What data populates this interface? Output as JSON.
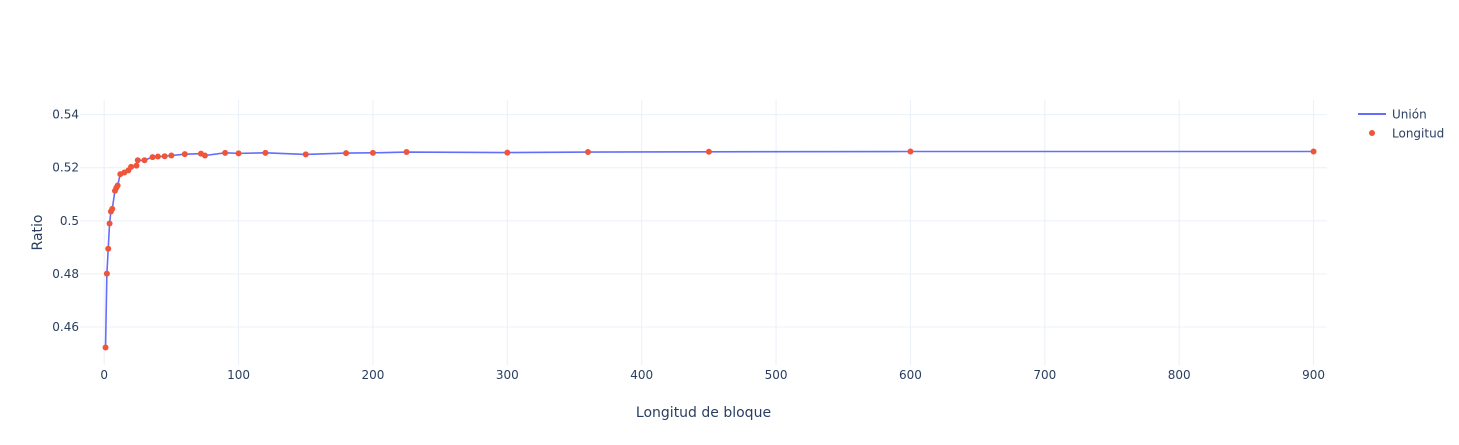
{
  "chart_data": {
    "type": "line",
    "title": "",
    "xlabel": "Longitud de bloque",
    "ylabel": "Ratio",
    "xlim": [
      -18,
      910
    ],
    "ylim": [
      0.4457,
      0.5455
    ],
    "xticks": [
      0,
      100,
      200,
      300,
      400,
      500,
      600,
      700,
      800,
      900
    ],
    "xtick_labels": [
      "0",
      "100",
      "200",
      "300",
      "400",
      "500",
      "600",
      "700",
      "800",
      "900"
    ],
    "yticks": [
      0.46,
      0.48,
      0.5,
      0.52,
      0.54
    ],
    "ytick_labels": [
      "0.46",
      "0.48",
      "0.5",
      "0.52",
      "0.54"
    ],
    "grid": true,
    "legend_position": "top-right",
    "series": [
      {
        "name": "Unión",
        "mode": "lines",
        "color": "#636efa",
        "x": [
          1,
          2,
          3,
          4,
          5,
          6,
          8,
          9,
          10,
          12,
          15,
          18,
          20,
          24,
          25,
          30,
          36,
          40,
          45,
          50,
          60,
          72,
          75,
          90,
          100,
          120,
          150,
          180,
          200,
          225,
          300,
          360,
          450,
          600,
          900
        ],
        "y": [
          0.4523,
          0.4801,
          0.4895,
          0.499,
          0.5035,
          0.5045,
          0.5113,
          0.5124,
          0.5133,
          0.5176,
          0.5182,
          0.519,
          0.5203,
          0.5208,
          0.5228,
          0.5228,
          0.524,
          0.5242,
          0.5243,
          0.5246,
          0.5251,
          0.5253,
          0.5246,
          0.5256,
          0.5254,
          0.5256,
          0.525,
          0.5255,
          0.5256,
          0.5259,
          0.5257,
          0.5259,
          0.526,
          0.5261,
          0.5261
        ]
      },
      {
        "name": "Longitud",
        "mode": "markers",
        "color": "#ef553b",
        "x": [
          1,
          2,
          3,
          4,
          5,
          6,
          8,
          9,
          10,
          12,
          15,
          18,
          20,
          24,
          25,
          30,
          36,
          40,
          45,
          50,
          60,
          72,
          75,
          90,
          100,
          120,
          150,
          180,
          200,
          225,
          300,
          360,
          450,
          600,
          900
        ],
        "y": [
          0.4523,
          0.4801,
          0.4895,
          0.499,
          0.5035,
          0.5045,
          0.5113,
          0.5124,
          0.5133,
          0.5176,
          0.5182,
          0.519,
          0.5203,
          0.5208,
          0.5228,
          0.5228,
          0.524,
          0.5242,
          0.5243,
          0.5246,
          0.5251,
          0.5253,
          0.5246,
          0.5256,
          0.5254,
          0.5256,
          0.525,
          0.5255,
          0.5256,
          0.5259,
          0.5257,
          0.5259,
          0.526,
          0.5261,
          0.5261
        ]
      }
    ]
  }
}
